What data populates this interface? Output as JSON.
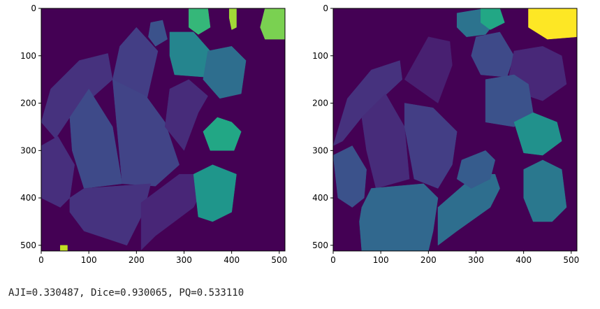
{
  "chart_data": [
    {
      "type": "heatmap",
      "title": "",
      "xlabel": "",
      "ylabel": "",
      "xlim": [
        0,
        512
      ],
      "ylim": [
        512,
        0
      ],
      "xticks": [
        0,
        100,
        200,
        300,
        400,
        500
      ],
      "yticks": [
        0,
        100,
        200,
        300,
        400,
        500
      ],
      "background_color": "#440154",
      "regions": [
        {
          "color": "#433e85",
          "points": [
            [
              200,
              40
            ],
            [
              245,
              90
            ],
            [
              220,
              200
            ],
            [
              150,
              150
            ],
            [
              165,
              80
            ]
          ]
        },
        {
          "color": "#46327e",
          "points": [
            [
              0,
              240
            ],
            [
              20,
              170
            ],
            [
              80,
              110
            ],
            [
              140,
              95
            ],
            [
              150,
              150
            ],
            [
              60,
              230
            ],
            [
              30,
              275
            ]
          ]
        },
        {
          "color": "#472f7d",
          "points": [
            [
              0,
              290
            ],
            [
              35,
              270
            ],
            [
              70,
              330
            ],
            [
              60,
              400
            ],
            [
              40,
              420
            ],
            [
              0,
              400
            ]
          ]
        },
        {
          "color": "#3e4a89",
          "points": [
            [
              60,
              230
            ],
            [
              100,
              170
            ],
            [
              150,
              250
            ],
            [
              170,
              370
            ],
            [
              90,
              380
            ],
            [
              65,
              300
            ]
          ]
        },
        {
          "color": "#414487",
          "points": [
            [
              150,
              150
            ],
            [
              220,
              185
            ],
            [
              260,
              240
            ],
            [
              290,
              330
            ],
            [
              240,
              375
            ],
            [
              170,
              370
            ]
          ]
        },
        {
          "color": "#472c7a",
          "points": [
            [
              310,
              150
            ],
            [
              350,
              185
            ],
            [
              330,
              220
            ],
            [
              300,
              300
            ],
            [
              260,
              250
            ],
            [
              270,
              170
            ]
          ]
        },
        {
          "color": "#46337f",
          "points": [
            [
              60,
              400
            ],
            [
              90,
              380
            ],
            [
              230,
              370
            ],
            [
              215,
              430
            ],
            [
              180,
              500
            ],
            [
              90,
              470
            ],
            [
              60,
              430
            ]
          ]
        },
        {
          "color": "#482677",
          "points": [
            [
              210,
              410
            ],
            [
              290,
              350
            ],
            [
              320,
              350
            ],
            [
              340,
              380
            ],
            [
              320,
              420
            ],
            [
              240,
              480
            ],
            [
              210,
              510
            ]
          ]
        },
        {
          "color": "#3b528b",
          "points": [
            [
              230,
              30
            ],
            [
              255,
              25
            ],
            [
              265,
              65
            ],
            [
              240,
              80
            ],
            [
              225,
              60
            ]
          ]
        },
        {
          "color": "#25858e",
          "points": [
            [
              270,
              50
            ],
            [
              320,
              50
            ],
            [
              355,
              90
            ],
            [
              345,
              145
            ],
            [
              280,
              140
            ],
            [
              270,
              100
            ]
          ]
        },
        {
          "color": "#2e6e8e",
          "points": [
            [
              350,
              90
            ],
            [
              400,
              80
            ],
            [
              430,
              110
            ],
            [
              420,
              180
            ],
            [
              375,
              190
            ],
            [
              340,
              150
            ]
          ]
        },
        {
          "color": "#22a785",
          "points": [
            [
              340,
              260
            ],
            [
              370,
              230
            ],
            [
              400,
              240
            ],
            [
              420,
              260
            ],
            [
              405,
              300
            ],
            [
              355,
              300
            ]
          ]
        },
        {
          "color": "#1f968b",
          "points": [
            [
              320,
              350
            ],
            [
              360,
              330
            ],
            [
              410,
              350
            ],
            [
              400,
              430
            ],
            [
              360,
              450
            ],
            [
              330,
              440
            ]
          ]
        },
        {
          "color": "#35b779",
          "points": [
            [
              310,
              0
            ],
            [
              350,
              0
            ],
            [
              355,
              40
            ],
            [
              330,
              55
            ],
            [
              310,
              40
            ]
          ]
        },
        {
          "color": "#7ad151",
          "points": [
            [
              470,
              0
            ],
            [
              512,
              0
            ],
            [
              512,
              65
            ],
            [
              470,
              65
            ],
            [
              460,
              40
            ]
          ]
        },
        {
          "color": "#a2da37",
          "points": [
            [
              395,
              0
            ],
            [
              410,
              0
            ],
            [
              410,
              40
            ],
            [
              400,
              45
            ],
            [
              395,
              20
            ]
          ]
        },
        {
          "color": "#c2df23",
          "points": [
            [
              40,
              500
            ],
            [
              55,
              500
            ],
            [
              55,
              512
            ],
            [
              40,
              512
            ]
          ]
        }
      ]
    },
    {
      "type": "heatmap",
      "title": "",
      "xlabel": "",
      "ylabel": "",
      "xlim": [
        0,
        512
      ],
      "ylim": [
        512,
        0
      ],
      "xticks": [
        0,
        100,
        200,
        300,
        400,
        500
      ],
      "yticks": [
        0,
        100,
        200,
        300,
        400,
        500
      ],
      "background_color": "#440154",
      "regions": [
        {
          "color": "#46327e",
          "points": [
            [
              0,
              290
            ],
            [
              30,
              190
            ],
            [
              80,
              130
            ],
            [
              140,
              110
            ],
            [
              145,
              150
            ],
            [
              60,
              230
            ],
            [
              20,
              280
            ]
          ]
        },
        {
          "color": "#482071",
          "points": [
            [
              150,
              150
            ],
            [
              200,
              60
            ],
            [
              245,
              70
            ],
            [
              250,
              120
            ],
            [
              220,
              200
            ],
            [
              150,
              150
            ]
          ]
        },
        {
          "color": "#472c7a",
          "points": [
            [
              60,
              230
            ],
            [
              110,
              180
            ],
            [
              150,
              250
            ],
            [
              160,
              360
            ],
            [
              90,
              380
            ],
            [
              70,
              300
            ]
          ]
        },
        {
          "color": "#433e85",
          "points": [
            [
              150,
              200
            ],
            [
              210,
              210
            ],
            [
              260,
              260
            ],
            [
              250,
              330
            ],
            [
              220,
              380
            ],
            [
              170,
              360
            ],
            [
              150,
              250
            ]
          ]
        },
        {
          "color": "#3b528b",
          "points": [
            [
              0,
              310
            ],
            [
              40,
              290
            ],
            [
              70,
              340
            ],
            [
              65,
              400
            ],
            [
              40,
              420
            ],
            [
              10,
              400
            ]
          ]
        },
        {
          "color": "#31688e",
          "points": [
            [
              60,
              420
            ],
            [
              80,
              380
            ],
            [
              190,
              370
            ],
            [
              220,
              400
            ],
            [
              210,
              470
            ],
            [
              200,
              512
            ],
            [
              60,
              512
            ],
            [
              55,
              450
            ]
          ]
        },
        {
          "color": "#2e6e8e",
          "points": [
            [
              220,
              420
            ],
            [
              300,
              350
            ],
            [
              340,
              350
            ],
            [
              350,
              380
            ],
            [
              330,
              420
            ],
            [
              260,
              470
            ],
            [
              220,
              500
            ]
          ]
        },
        {
          "color": "#365c8d",
          "points": [
            [
              270,
              320
            ],
            [
              320,
              300
            ],
            [
              340,
              320
            ],
            [
              330,
              360
            ],
            [
              290,
              380
            ],
            [
              260,
              360
            ]
          ]
        },
        {
          "color": "#2c738e",
          "points": [
            [
              260,
              10
            ],
            [
              320,
              0
            ],
            [
              340,
              30
            ],
            [
              320,
              55
            ],
            [
              280,
              60
            ],
            [
              260,
              40
            ]
          ]
        },
        {
          "color": "#22a785",
          "points": [
            [
              310,
              0
            ],
            [
              350,
              0
            ],
            [
              360,
              30
            ],
            [
              330,
              45
            ],
            [
              310,
              30
            ]
          ]
        },
        {
          "color": "#3e4a89",
          "points": [
            [
              300,
              60
            ],
            [
              350,
              50
            ],
            [
              380,
              100
            ],
            [
              365,
              145
            ],
            [
              310,
              140
            ],
            [
              290,
              100
            ]
          ]
        },
        {
          "color": "#482878",
          "points": [
            [
              380,
              90
            ],
            [
              440,
              80
            ],
            [
              480,
              100
            ],
            [
              490,
              160
            ],
            [
              440,
              195
            ],
            [
              395,
              180
            ],
            [
              370,
              140
            ]
          ]
        },
        {
          "color": "#3b528b",
          "points": [
            [
              320,
              150
            ],
            [
              380,
              140
            ],
            [
              410,
              160
            ],
            [
              420,
              220
            ],
            [
              380,
              250
            ],
            [
              320,
              240
            ]
          ]
        },
        {
          "color": "#21918c",
          "points": [
            [
              380,
              240
            ],
            [
              420,
              220
            ],
            [
              470,
              240
            ],
            [
              480,
              280
            ],
            [
              440,
              310
            ],
            [
              400,
              305
            ]
          ]
        },
        {
          "color": "#2a788e",
          "points": [
            [
              400,
              340
            ],
            [
              440,
              320
            ],
            [
              480,
              340
            ],
            [
              490,
              420
            ],
            [
              460,
              450
            ],
            [
              420,
              450
            ],
            [
              400,
              400
            ]
          ]
        },
        {
          "color": "#fde725",
          "points": [
            [
              410,
              0
            ],
            [
              512,
              0
            ],
            [
              512,
              60
            ],
            [
              450,
              65
            ],
            [
              410,
              40
            ]
          ]
        }
      ]
    }
  ],
  "metrics_text": "AJI=0.330487, Dice=0.930065, PQ=0.533110"
}
